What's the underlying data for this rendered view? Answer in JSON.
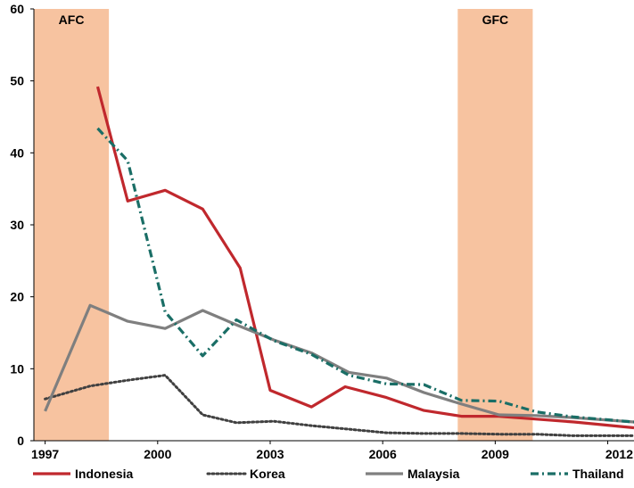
{
  "chart_data": {
    "type": "line",
    "title": "",
    "xlabel": "",
    "ylabel": "",
    "xlim": [
      1996.7,
      2012.7
    ],
    "ylim": [
      0,
      60
    ],
    "xticks": [
      1997,
      2000,
      2003,
      2006,
      2009,
      2012
    ],
    "xtick_labels": [
      "1997",
      "2000",
      "2003",
      "2006",
      "2009",
      "2012"
    ],
    "yticks": [
      0,
      10,
      20,
      30,
      40,
      50,
      60
    ],
    "ytick_labels": [
      "0",
      "10",
      "20",
      "30",
      "40",
      "50",
      "60"
    ],
    "grid": false,
    "legend_position": "bottom",
    "shaded_periods": [
      {
        "label": "AFC",
        "start": 1996.7,
        "end": 1998.7,
        "color": "#F7C3A0"
      },
      {
        "label": "GFC",
        "start": 2008.0,
        "end": 2010.0,
        "color": "#F7C3A0"
      }
    ],
    "series": [
      {
        "name": "Indonesia",
        "color": "#C0282D",
        "style": "solid",
        "points": [
          [
            1998.4,
            49.2
          ],
          [
            1999.2,
            33.3
          ],
          [
            2000.2,
            34.8
          ],
          [
            2001.2,
            32.2
          ],
          [
            2002.2,
            24.0
          ],
          [
            2003.0,
            7.0
          ],
          [
            2004.1,
            4.7
          ],
          [
            2005.0,
            7.5
          ],
          [
            2006.1,
            6.0
          ],
          [
            2007.1,
            4.2
          ],
          [
            2008.1,
            3.4
          ],
          [
            2009.1,
            3.4
          ],
          [
            2010.1,
            3.0
          ],
          [
            2011.1,
            2.6
          ],
          [
            2012.7,
            1.8
          ]
        ]
      },
      {
        "name": "Korea",
        "color": "#404040",
        "style": "dotted",
        "points": [
          [
            1997.0,
            5.8
          ],
          [
            1998.2,
            7.6
          ],
          [
            1999.2,
            8.4
          ],
          [
            2000.2,
            9.1
          ],
          [
            2001.2,
            3.6
          ],
          [
            2002.1,
            2.5
          ],
          [
            2003.1,
            2.7
          ],
          [
            2004.1,
            2.1
          ],
          [
            2005.1,
            1.6
          ],
          [
            2006.1,
            1.1
          ],
          [
            2007.1,
            1.0
          ],
          [
            2008.1,
            1.0
          ],
          [
            2009.1,
            0.9
          ],
          [
            2010.1,
            0.9
          ],
          [
            2011.1,
            0.7
          ],
          [
            2012.7,
            0.7
          ]
        ]
      },
      {
        "name": "Malaysia",
        "color": "#7F7F7F",
        "style": "solid",
        "points": [
          [
            1997.0,
            4.1
          ],
          [
            1998.2,
            18.8
          ],
          [
            1999.2,
            16.6
          ],
          [
            2000.2,
            15.6
          ],
          [
            2001.2,
            18.1
          ],
          [
            2002.1,
            16.1
          ],
          [
            2003.1,
            14.0
          ],
          [
            2004.1,
            12.2
          ],
          [
            2005.1,
            9.5
          ],
          [
            2006.1,
            8.7
          ],
          [
            2007.1,
            6.7
          ],
          [
            2008.1,
            5.1
          ],
          [
            2009.1,
            3.6
          ],
          [
            2010.1,
            3.5
          ],
          [
            2011.1,
            3.2
          ],
          [
            2012.7,
            2.6
          ]
        ]
      },
      {
        "name": "Thailand",
        "color": "#1A6E66",
        "style": "dashdot",
        "points": [
          [
            1998.4,
            43.4
          ],
          [
            1999.2,
            38.9
          ],
          [
            2000.2,
            17.9
          ],
          [
            2001.2,
            11.8
          ],
          [
            2002.1,
            16.8
          ],
          [
            2003.1,
            13.9
          ],
          [
            2004.1,
            12.0
          ],
          [
            2005.1,
            9.1
          ],
          [
            2006.1,
            7.9
          ],
          [
            2007.1,
            7.8
          ],
          [
            2008.1,
            5.6
          ],
          [
            2009.1,
            5.5
          ],
          [
            2010.1,
            4.0
          ],
          [
            2011.1,
            3.3
          ],
          [
            2012.7,
            2.6
          ]
        ]
      }
    ]
  }
}
